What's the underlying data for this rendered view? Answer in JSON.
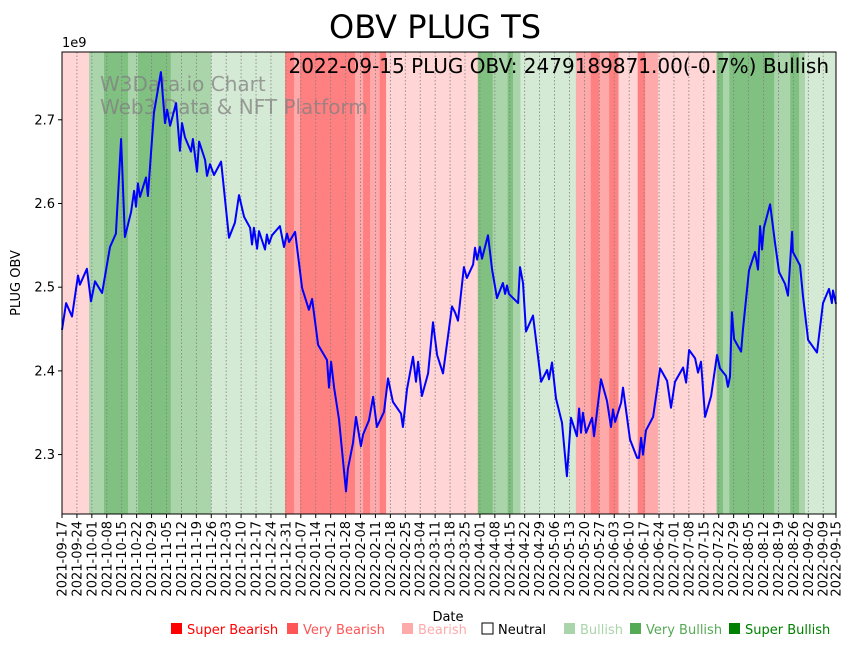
{
  "chart_data": {
    "type": "line",
    "title": "OBV PLUG TS",
    "annotation": "2022-09-15 PLUG OBV: 2479189871.00(-0.7%) Bullish",
    "watermark": [
      "W3Data.io Chart",
      "Web3 Data & NFT Platform"
    ],
    "xlabel": "Date",
    "ylabel": "PLUG OBV",
    "y_offset_label": "1e9",
    "x_start_date": "2021-09-17",
    "x_range_days": [
      0,
      363
    ],
    "ylim": [
      2.229,
      2.781
    ],
    "yticks": [
      {
        "value": 2.3,
        "label": "2.3"
      },
      {
        "value": 2.4,
        "label": "2.4"
      },
      {
        "value": 2.5,
        "label": "2.5"
      },
      {
        "value": 2.6,
        "label": "2.6"
      },
      {
        "value": 2.7,
        "label": "2.7"
      }
    ],
    "xtick_labels": [
      "2021-09-17",
      "2021-09-24",
      "2021-10-01",
      "2021-10-08",
      "2021-10-15",
      "2021-10-22",
      "2021-10-29",
      "2021-11-05",
      "2021-11-12",
      "2021-11-19",
      "2021-11-26",
      "2021-12-03",
      "2021-12-10",
      "2021-12-17",
      "2021-12-24",
      "2021-12-31",
      "2022-01-07",
      "2022-01-14",
      "2022-01-21",
      "2022-01-28",
      "2022-02-04",
      "2022-02-11",
      "2022-02-18",
      "2022-02-25",
      "2022-03-04",
      "2022-03-11",
      "2022-03-18",
      "2022-03-25",
      "2022-04-01",
      "2022-04-08",
      "2022-04-15",
      "2022-04-22",
      "2022-04-29",
      "2022-05-06",
      "2022-05-13",
      "2022-05-20",
      "2022-05-27",
      "2022-06-03",
      "2022-06-10",
      "2022-06-17",
      "2022-06-24",
      "2022-07-01",
      "2022-07-08",
      "2022-07-15",
      "2022-07-22",
      "2022-07-29",
      "2022-08-05",
      "2022-08-12",
      "2022-08-19",
      "2022-08-26",
      "2022-09-02",
      "2022-09-09",
      "2022-09-15"
    ],
    "xtick_days": [
      0,
      7,
      14,
      21,
      28,
      35,
      42,
      49,
      56,
      63,
      70,
      77,
      84,
      91,
      98,
      105,
      112,
      119,
      126,
      133,
      140,
      147,
      154,
      161,
      168,
      175,
      182,
      189,
      196,
      203,
      210,
      217,
      224,
      231,
      238,
      245,
      252,
      259,
      266,
      273,
      280,
      287,
      294,
      301,
      308,
      315,
      322,
      329,
      336,
      343,
      350,
      357,
      363
    ],
    "grid": "vertical dotted",
    "legend": {
      "placement": "bottom-right",
      "entries": [
        {
          "label": "Super Bearish",
          "color": "#ff0000",
          "text_color": "#ff0000"
        },
        {
          "label": "Very Bearish",
          "color": "#ff5555",
          "text_color": "#ff5555"
        },
        {
          "label": "Bearish",
          "color": "#ffaaaa",
          "text_color": "#ffaaaa"
        },
        {
          "label": "Neutral",
          "color": "#ffffff",
          "text_color": "#000000"
        },
        {
          "label": "Bullish",
          "color": "#aad4aa",
          "text_color": "#aad4aa"
        },
        {
          "label": "Very Bullish",
          "color": "#55aa55",
          "text_color": "#55aa55"
        },
        {
          "label": "Super Bullish",
          "color": "#008000",
          "text_color": "#008000"
        }
      ]
    },
    "band_colors": {
      "Bearish": "#ffd5d5",
      "Very Bearish": "#ffaaaa",
      "Super Bearish": "#ff8080",
      "Bullish": "#d5ead5",
      "Very Bullish": "#aad4aa",
      "Super Bullish": "#80c080"
    },
    "bands": [
      {
        "start": 0,
        "end": 12.7,
        "state": "Bearish"
      },
      {
        "start": 12.7,
        "end": 19.7,
        "state": "Very Bullish"
      },
      {
        "start": 19.7,
        "end": 31,
        "state": "Super Bullish"
      },
      {
        "start": 31,
        "end": 35.6,
        "state": "Very Bullish"
      },
      {
        "start": 35.6,
        "end": 51,
        "state": "Super Bullish"
      },
      {
        "start": 51,
        "end": 70,
        "state": "Very Bullish"
      },
      {
        "start": 70,
        "end": 104.6,
        "state": "Bullish"
      },
      {
        "start": 104.6,
        "end": 108.8,
        "state": "Super Bearish"
      },
      {
        "start": 108.8,
        "end": 111.6,
        "state": "Very Bearish"
      },
      {
        "start": 111.6,
        "end": 137.4,
        "state": "Super Bearish"
      },
      {
        "start": 137.4,
        "end": 141.2,
        "state": "Very Bearish"
      },
      {
        "start": 141.2,
        "end": 144.5,
        "state": "Super Bearish"
      },
      {
        "start": 144.5,
        "end": 149,
        "state": "Very Bearish"
      },
      {
        "start": 149,
        "end": 152,
        "state": "Super Bearish"
      },
      {
        "start": 152,
        "end": 195,
        "state": "Bearish"
      },
      {
        "start": 195,
        "end": 202,
        "state": "Super Bullish"
      },
      {
        "start": 202,
        "end": 209,
        "state": "Very Bullish"
      },
      {
        "start": 209,
        "end": 211.5,
        "state": "Super Bullish"
      },
      {
        "start": 211.5,
        "end": 215,
        "state": "Very Bullish"
      },
      {
        "start": 215,
        "end": 241,
        "state": "Bullish"
      },
      {
        "start": 241,
        "end": 248,
        "state": "Very Bearish"
      },
      {
        "start": 248,
        "end": 252,
        "state": "Super Bearish"
      },
      {
        "start": 252,
        "end": 256.6,
        "state": "Very Bearish"
      },
      {
        "start": 256.6,
        "end": 261,
        "state": "Super Bearish"
      },
      {
        "start": 261,
        "end": 270,
        "state": "Bearish"
      },
      {
        "start": 270,
        "end": 273.5,
        "state": "Super Bearish"
      },
      {
        "start": 273.5,
        "end": 279.5,
        "state": "Very Bearish"
      },
      {
        "start": 279.5,
        "end": 307,
        "state": "Bearish"
      },
      {
        "start": 307,
        "end": 310,
        "state": "Super Bullish"
      },
      {
        "start": 310,
        "end": 313,
        "state": "Very Bullish"
      },
      {
        "start": 313,
        "end": 334,
        "state": "Super Bullish"
      },
      {
        "start": 334,
        "end": 341.5,
        "state": "Very Bullish"
      },
      {
        "start": 341.5,
        "end": 345.7,
        "state": "Super Bullish"
      },
      {
        "start": 345.7,
        "end": 348.5,
        "state": "Very Bullish"
      },
      {
        "start": 348.5,
        "end": 363,
        "state": "Bullish"
      }
    ],
    "series": [
      {
        "name": "PLUG OBV",
        "color": "#0000ff",
        "points": [
          [
            0,
            2.449
          ],
          [
            1.9,
            2.481
          ],
          [
            4.7,
            2.465
          ],
          [
            7.5,
            2.514
          ],
          [
            8.4,
            2.503
          ],
          [
            11.7,
            2.522
          ],
          [
            13.6,
            2.483
          ],
          [
            15.5,
            2.507
          ],
          [
            18.8,
            2.493
          ],
          [
            22.5,
            2.548
          ],
          [
            25.3,
            2.564
          ],
          [
            27.7,
            2.677
          ],
          [
            29.5,
            2.56
          ],
          [
            32.4,
            2.59
          ],
          [
            33.8,
            2.615
          ],
          [
            34.7,
            2.596
          ],
          [
            35.6,
            2.624
          ],
          [
            36.6,
            2.608
          ],
          [
            39.4,
            2.631
          ],
          [
            40.3,
            2.609
          ],
          [
            43.1,
            2.708
          ],
          [
            46.4,
            2.757
          ],
          [
            48.3,
            2.696
          ],
          [
            49.3,
            2.712
          ],
          [
            50.7,
            2.693
          ],
          [
            53.5,
            2.72
          ],
          [
            55.3,
            2.663
          ],
          [
            56.3,
            2.696
          ],
          [
            57.7,
            2.679
          ],
          [
            60.5,
            2.662
          ],
          [
            61.4,
            2.677
          ],
          [
            63.3,
            2.638
          ],
          [
            64.3,
            2.674
          ],
          [
            67.1,
            2.652
          ],
          [
            68,
            2.633
          ],
          [
            69.4,
            2.647
          ],
          [
            71.3,
            2.634
          ],
          [
            74.6,
            2.65
          ],
          [
            78.3,
            2.559
          ],
          [
            81.1,
            2.577
          ],
          [
            83,
            2.61
          ],
          [
            85.4,
            2.584
          ],
          [
            88.2,
            2.571
          ],
          [
            89.1,
            2.551
          ],
          [
            90,
            2.571
          ],
          [
            91.5,
            2.546
          ],
          [
            92.4,
            2.567
          ],
          [
            95.2,
            2.545
          ],
          [
            96.1,
            2.563
          ],
          [
            97.1,
            2.552
          ],
          [
            98.5,
            2.562
          ],
          [
            102.2,
            2.573
          ],
          [
            104.1,
            2.548
          ],
          [
            105.5,
            2.564
          ],
          [
            106.5,
            2.554
          ],
          [
            109.3,
            2.566
          ],
          [
            112.6,
            2.499
          ],
          [
            115.8,
            2.473
          ],
          [
            117.3,
            2.486
          ],
          [
            120.1,
            2.431
          ],
          [
            124.3,
            2.413
          ],
          [
            125.2,
            2.38
          ],
          [
            126.2,
            2.411
          ],
          [
            127.6,
            2.38
          ],
          [
            129.9,
            2.342
          ],
          [
            133.2,
            2.256
          ],
          [
            134.1,
            2.283
          ],
          [
            136.5,
            2.314
          ],
          [
            137.9,
            2.345
          ],
          [
            140.2,
            2.31
          ],
          [
            141.2,
            2.324
          ],
          [
            144,
            2.341
          ],
          [
            145.9,
            2.369
          ],
          [
            147.7,
            2.333
          ],
          [
            151,
            2.351
          ],
          [
            152.9,
            2.391
          ],
          [
            155.2,
            2.363
          ],
          [
            159,
            2.349
          ],
          [
            159.9,
            2.333
          ],
          [
            161.8,
            2.378
          ],
          [
            164.6,
            2.417
          ],
          [
            166,
            2.387
          ],
          [
            167,
            2.411
          ],
          [
            168.8,
            2.37
          ],
          [
            171.7,
            2.397
          ],
          [
            174,
            2.458
          ],
          [
            175.9,
            2.419
          ],
          [
            178.7,
            2.397
          ],
          [
            182.9,
            2.477
          ],
          [
            184.3,
            2.47
          ],
          [
            185.7,
            2.46
          ],
          [
            188.5,
            2.524
          ],
          [
            189.9,
            2.511
          ],
          [
            192.8,
            2.527
          ],
          [
            193.7,
            2.547
          ],
          [
            194.7,
            2.533
          ],
          [
            196,
            2.548
          ],
          [
            197,
            2.534
          ],
          [
            199.8,
            2.562
          ],
          [
            201.7,
            2.521
          ],
          [
            204,
            2.487
          ],
          [
            206.8,
            2.505
          ],
          [
            207.8,
            2.492
          ],
          [
            208.7,
            2.502
          ],
          [
            209.6,
            2.492
          ],
          [
            213.9,
            2.481
          ],
          [
            214.8,
            2.524
          ],
          [
            216.2,
            2.505
          ],
          [
            217.6,
            2.447
          ],
          [
            220.9,
            2.466
          ],
          [
            222.3,
            2.437
          ],
          [
            224.7,
            2.387
          ],
          [
            227.5,
            2.401
          ],
          [
            228.4,
            2.39
          ],
          [
            229.8,
            2.41
          ],
          [
            231.7,
            2.367
          ],
          [
            234.5,
            2.338
          ],
          [
            236.8,
            2.274
          ],
          [
            238.7,
            2.344
          ],
          [
            241.5,
            2.322
          ],
          [
            242.5,
            2.355
          ],
          [
            243.4,
            2.326
          ],
          [
            244.3,
            2.35
          ],
          [
            245.8,
            2.326
          ],
          [
            248.6,
            2.344
          ],
          [
            249.5,
            2.322
          ],
          [
            252.8,
            2.39
          ],
          [
            255.6,
            2.364
          ],
          [
            257.5,
            2.333
          ],
          [
            258.4,
            2.354
          ],
          [
            259.4,
            2.339
          ],
          [
            262.2,
            2.362
          ],
          [
            263.1,
            2.38
          ],
          [
            266.4,
            2.318
          ],
          [
            269.7,
            2.296
          ],
          [
            270.6,
            2.296
          ],
          [
            271.6,
            2.32
          ],
          [
            272.5,
            2.3
          ],
          [
            273.9,
            2.329
          ],
          [
            277.2,
            2.345
          ],
          [
            280.5,
            2.403
          ],
          [
            283.8,
            2.388
          ],
          [
            285.6,
            2.356
          ],
          [
            287.5,
            2.387
          ],
          [
            291.3,
            2.404
          ],
          [
            292.7,
            2.386
          ],
          [
            294.1,
            2.425
          ],
          [
            296.9,
            2.415
          ],
          [
            298.3,
            2.398
          ],
          [
            299.7,
            2.411
          ],
          [
            301.6,
            2.345
          ],
          [
            304.4,
            2.37
          ],
          [
            307.2,
            2.419
          ],
          [
            308.6,
            2.403
          ],
          [
            311.4,
            2.394
          ],
          [
            312.3,
            2.381
          ],
          [
            313.3,
            2.393
          ],
          [
            314.2,
            2.47
          ],
          [
            315.2,
            2.438
          ],
          [
            318.5,
            2.423
          ],
          [
            319.4,
            2.45
          ],
          [
            322.2,
            2.52
          ],
          [
            325,
            2.542
          ],
          [
            326.4,
            2.521
          ],
          [
            327.4,
            2.573
          ],
          [
            328.3,
            2.545
          ],
          [
            329.2,
            2.571
          ],
          [
            332.1,
            2.599
          ],
          [
            334.4,
            2.553
          ],
          [
            336.3,
            2.518
          ],
          [
            339.1,
            2.504
          ],
          [
            340.5,
            2.49
          ],
          [
            342.4,
            2.566
          ],
          [
            342.8,
            2.542
          ],
          [
            346.1,
            2.526
          ],
          [
            347.5,
            2.489
          ],
          [
            349.9,
            2.437
          ],
          [
            354.1,
            2.422
          ],
          [
            356.9,
            2.481
          ],
          [
            359.7,
            2.498
          ],
          [
            361.1,
            2.481
          ],
          [
            361.6,
            2.496
          ],
          [
            363,
            2.48
          ]
        ]
      }
    ]
  }
}
